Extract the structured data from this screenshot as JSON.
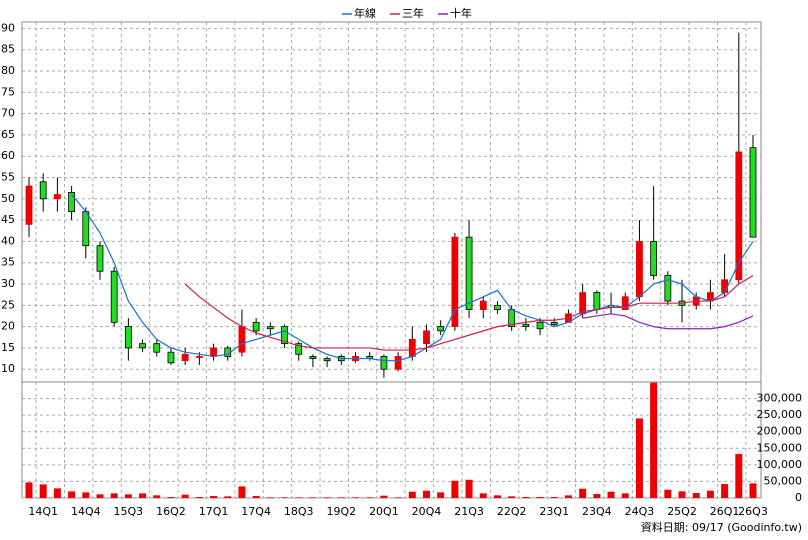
{
  "chart_data": {
    "type": "candlestick",
    "categories": [
      null,
      "14Q1",
      null,
      null,
      "14Q4",
      null,
      null,
      "15Q3",
      null,
      null,
      "16Q2",
      null,
      null,
      "17Q1",
      null,
      null,
      "17Q4",
      null,
      null,
      "18Q3",
      null,
      null,
      "19Q2",
      null,
      null,
      "20Q1",
      null,
      null,
      "20Q4",
      null,
      null,
      "21Q3",
      null,
      null,
      "22Q2",
      null,
      null,
      "23Q1",
      null,
      null,
      "23Q4",
      null,
      null,
      "24Q3",
      null,
      null,
      "25Q2",
      null,
      null,
      "26Q1",
      null,
      "26Q3"
    ],
    "open": [
      44,
      54,
      50,
      51.5,
      47,
      39,
      33,
      20,
      16,
      16,
      14,
      12,
      13,
      13,
      15,
      14,
      21,
      20,
      20,
      16,
      13,
      12.5,
      13,
      12,
      13,
      13,
      10,
      13,
      16,
      20,
      20,
      41,
      24,
      25,
      24,
      20.5,
      21,
      21,
      21,
      23,
      28,
      25,
      24,
      27,
      40,
      32,
      26,
      25,
      26,
      28,
      31,
      62
    ],
    "high": [
      55,
      56,
      55,
      53,
      48,
      40,
      34,
      22,
      17,
      17,
      15,
      15,
      14,
      16,
      15.5,
      24,
      22,
      21,
      20.5,
      16.5,
      13.5,
      13,
      13.5,
      14,
      14,
      13.5,
      14,
      20,
      20.5,
      21.5,
      42,
      45,
      27,
      26,
      25,
      22,
      22,
      22,
      24,
      30,
      28.5,
      28,
      28,
      45,
      53,
      33,
      31,
      28,
      31,
      37,
      89,
      65
    ],
    "low": [
      41,
      47,
      47,
      45,
      36,
      31,
      20,
      12,
      14,
      13,
      11,
      11,
      11,
      12,
      12,
      13,
      18,
      18,
      15,
      12,
      10.5,
      10.5,
      11,
      11.5,
      12,
      8,
      9.5,
      12,
      14,
      18,
      19,
      22,
      22,
      23,
      19,
      19,
      18,
      20,
      21,
      22,
      23,
      23,
      24,
      26,
      31,
      25,
      21,
      24,
      24,
      27,
      30,
      41
    ],
    "close": [
      53,
      50,
      51,
      47,
      39,
      33,
      21,
      15,
      15,
      14,
      11.5,
      13.5,
      13,
      15,
      13,
      20,
      19,
      19.5,
      16,
      13.5,
      12.5,
      12,
      12,
      13,
      12.5,
      10,
      13,
      17,
      19,
      19,
      41,
      24,
      26,
      24,
      20,
      20,
      19.5,
      20.5,
      23,
      28,
      24,
      24.5,
      27,
      40,
      32,
      26,
      25,
      27,
      28,
      31,
      61,
      41
    ],
    "up_color": "#ee0000",
    "down_color": "#22dd22",
    "ylim": [
      7,
      91.5
    ],
    "yticks": [
      10,
      15,
      20,
      25,
      30,
      35,
      40,
      45,
      50,
      55,
      60,
      65,
      70,
      75,
      80,
      85,
      90
    ],
    "series": [
      {
        "name": "年線",
        "color": "#1a6fd9",
        "values": [
          null,
          null,
          null,
          51,
          47,
          42,
          35,
          26,
          21,
          17,
          15,
          14,
          13.5,
          13,
          13.5,
          16,
          17,
          18,
          19,
          17,
          15,
          13.5,
          12.5,
          12.5,
          12.5,
          12,
          12,
          13,
          15,
          17,
          24,
          25.5,
          27,
          28.5,
          24,
          22.5,
          21.5,
          20,
          21,
          23,
          24,
          25,
          24.5,
          27,
          30,
          31,
          30,
          27,
          26,
          28,
          35,
          40
        ]
      },
      {
        "name": "三年",
        "color": "#d02050",
        "values": [
          null,
          null,
          null,
          null,
          null,
          null,
          null,
          null,
          null,
          null,
          null,
          30,
          27,
          24.5,
          22,
          20,
          18.5,
          17.5,
          16.5,
          15.5,
          15,
          15,
          15,
          15,
          15,
          14.5,
          14.5,
          14.5,
          15,
          16,
          17,
          18,
          19,
          20,
          20.5,
          21,
          21.5,
          21.5,
          22,
          23.5,
          24,
          24.5,
          24.5,
          25.5,
          25.5,
          25.5,
          25.5,
          26,
          26,
          27,
          30,
          32
        ]
      },
      {
        "name": "十年",
        "color": "#9020b0",
        "values": [
          null,
          null,
          null,
          null,
          null,
          null,
          null,
          null,
          null,
          null,
          null,
          null,
          null,
          null,
          null,
          null,
          null,
          null,
          null,
          null,
          null,
          null,
          null,
          null,
          null,
          null,
          null,
          null,
          null,
          null,
          null,
          null,
          null,
          null,
          null,
          null,
          null,
          null,
          null,
          22,
          22.5,
          23,
          22.5,
          21,
          20,
          19.5,
          19.5,
          19.5,
          19.5,
          20,
          21,
          22.5
        ]
      }
    ],
    "volume": {
      "color": "#ee0000",
      "values": [
        47000,
        41000,
        29000,
        20000,
        17000,
        11000,
        14000,
        11000,
        14000,
        8000,
        3000,
        10000,
        3000,
        6000,
        5000,
        35000,
        6000,
        2000,
        2000,
        2000,
        2000,
        2000,
        2000,
        2000,
        2000,
        7000,
        2000,
        19000,
        22000,
        17000,
        52000,
        55000,
        14000,
        8000,
        5000,
        3000,
        3000,
        3000,
        8000,
        28000,
        12000,
        19000,
        14000,
        240000,
        348000,
        25000,
        20000,
        15000,
        22000,
        42000,
        133000,
        44000
      ],
      "ylim": [
        0,
        350000
      ],
      "yticks": [
        0,
        {
          "value": 50000,
          "label": "50,000"
        },
        {
          "value": 100000,
          "label": "100,000"
        },
        {
          "value": 150000,
          "label": "150,000"
        },
        {
          "value": 200000,
          "label": "200,000"
        },
        {
          "value": 250000,
          "label": "250,000"
        },
        {
          "value": 300000,
          "label": "300,000"
        }
      ]
    },
    "grid": true,
    "note": "資料日期: 09/17 (Goodinfo.tw)"
  }
}
